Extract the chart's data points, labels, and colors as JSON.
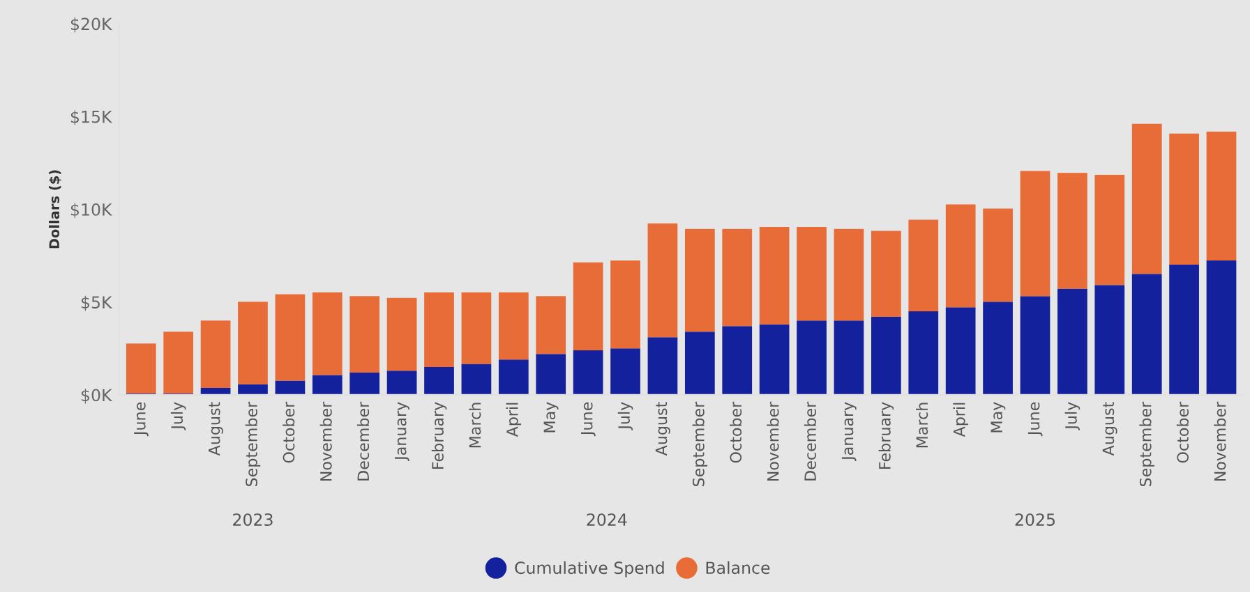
{
  "chart_data": {
    "type": "bar",
    "stacked": true,
    "ylabel": "Dollars ($)",
    "categories": [
      "June",
      "July",
      "August",
      "September",
      "October",
      "November",
      "December",
      "January",
      "February",
      "March",
      "April",
      "May",
      "June",
      "July",
      "August",
      "September",
      "October",
      "November",
      "December",
      "January",
      "February",
      "March",
      "April",
      "May",
      "June",
      "July",
      "August",
      "September",
      "October",
      "November"
    ],
    "series": [
      {
        "name": "Cumulative Spend",
        "color": "#13229c",
        "values": [
          70,
          70,
          370,
          570,
          770,
          1070,
          1200,
          1300,
          1500,
          1670,
          1900,
          2200,
          2400,
          2500,
          3100,
          3400,
          3700,
          3800,
          4000,
          4000,
          4200,
          4500,
          4720,
          5020,
          5320,
          5720,
          5920,
          6520,
          7020,
          7240
        ]
      },
      {
        "name": "Balance",
        "color": "#e86c38",
        "values": [
          2700,
          3330,
          3630,
          4450,
          4650,
          4450,
          4120,
          3920,
          4020,
          3850,
          3620,
          3120,
          4740,
          4740,
          6140,
          5540,
          5240,
          5240,
          5040,
          4940,
          4640,
          4940,
          5540,
          5020,
          6740,
          6240,
          5940,
          8090,
          7060,
          6940
        ]
      }
    ],
    "ylim": [
      0,
      20000
    ],
    "yticks": [
      {
        "value": 0,
        "label": "$0K"
      },
      {
        "value": 5000,
        "label": "$5K"
      },
      {
        "value": 10000,
        "label": "$10K"
      },
      {
        "value": 15000,
        "label": "$15K"
      },
      {
        "value": 20000,
        "label": "$20K"
      }
    ],
    "annotations": [
      "2023",
      "2024",
      "2025"
    ],
    "grid": false,
    "legend": "bottom"
  }
}
